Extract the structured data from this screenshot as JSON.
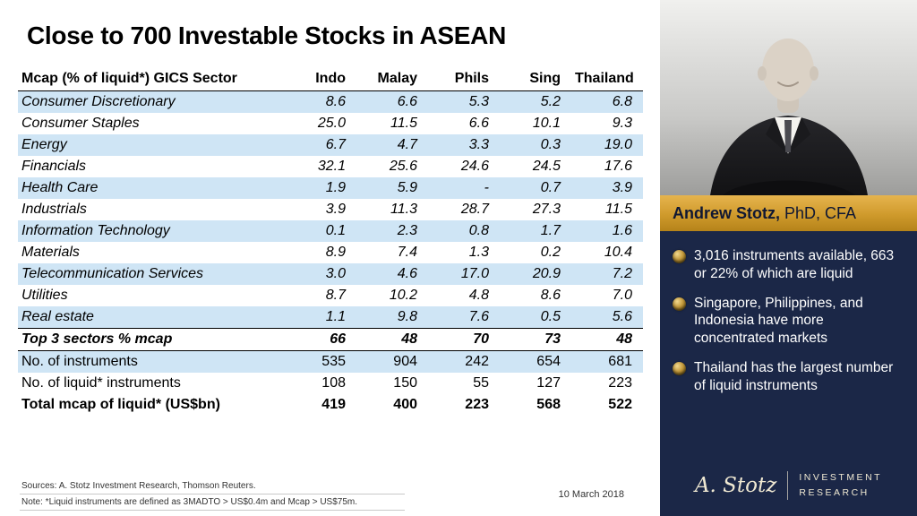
{
  "slide": {
    "title": "Close to 700 Investable Stocks in ASEAN",
    "sources": "Sources: A. Stotz Investment Research, Thomson Reuters.",
    "note": "Note:  *Liquid instruments are defined as 3MADTO > US$0.4m  and Mcap > US$75m.",
    "date": "10 March 2018"
  },
  "table": {
    "header": [
      "Mcap (% of liquid*) GICS Sector",
      "Indo",
      "Malay",
      "Phils",
      "Sing",
      "Thailand"
    ],
    "rows": [
      {
        "label": "Consumer Discretionary",
        "values": [
          "8.6",
          "6.6",
          "5.3",
          "5.2",
          "6.8"
        ],
        "italic": true
      },
      {
        "label": "Consumer Staples",
        "values": [
          "25.0",
          "11.5",
          "6.6",
          "10.1",
          "9.3"
        ],
        "italic": true
      },
      {
        "label": "Energy",
        "values": [
          "6.7",
          "4.7",
          "3.3",
          "0.3",
          "19.0"
        ],
        "italic": true
      },
      {
        "label": "Financials",
        "values": [
          "32.1",
          "25.6",
          "24.6",
          "24.5",
          "17.6"
        ],
        "italic": true
      },
      {
        "label": "Health Care",
        "values": [
          "1.9",
          "5.9",
          "-",
          "0.7",
          "3.9"
        ],
        "italic": true
      },
      {
        "label": "Industrials",
        "values": [
          "3.9",
          "11.3",
          "28.7",
          "27.3",
          "11.5"
        ],
        "italic": true
      },
      {
        "label": "Information Technology",
        "values": [
          "0.1",
          "2.3",
          "0.8",
          "1.7",
          "1.6"
        ],
        "italic": true
      },
      {
        "label": "Materials",
        "values": [
          "8.9",
          "7.4",
          "1.3",
          "0.2",
          "10.4"
        ],
        "italic": true
      },
      {
        "label": "Telecommunication Services",
        "values": [
          "3.0",
          "4.6",
          "17.0",
          "20.9",
          "7.2"
        ],
        "italic": true
      },
      {
        "label": "Utilities",
        "values": [
          "8.7",
          "10.2",
          "4.8",
          "8.6",
          "7.0"
        ],
        "italic": true
      },
      {
        "label": "Real estate",
        "values": [
          "1.1",
          "9.8",
          "7.6",
          "0.5",
          "5.6"
        ],
        "italic": true
      },
      {
        "label": "Top 3 sectors % mcap",
        "values": [
          "66",
          "48",
          "70",
          "73",
          "48"
        ],
        "italic": true,
        "bold": true
      },
      {
        "label": "No. of instruments",
        "values": [
          "535",
          "904",
          "242",
          "654",
          "681"
        ]
      },
      {
        "label": "No. of liquid* instruments",
        "values": [
          "108",
          "150",
          "55",
          "127",
          "223"
        ]
      },
      {
        "label": "Total mcap of liquid* (US$bn)",
        "values": [
          "419",
          "400",
          "223",
          "568",
          "522"
        ],
        "bold": true
      }
    ]
  },
  "author": {
    "name": "Andrew Stotz,",
    "credentials": "PhD, CFA",
    "bullets": [
      "3,016 instruments available, 663 or 22% of which are liquid",
      "Singapore, Philippines, and Indonesia have more concentrated markets",
      "Thailand has the largest number of liquid instruments"
    ]
  },
  "logo": {
    "signature": "A. Stotz",
    "line1": "INVESTMENT",
    "line2": "RESEARCH"
  },
  "colors": {
    "row_shade": "#cfe5f5",
    "panel_navy": "#1b2747",
    "band_gold": "#cf9a2c",
    "logo_ivory": "#efe8d2"
  }
}
